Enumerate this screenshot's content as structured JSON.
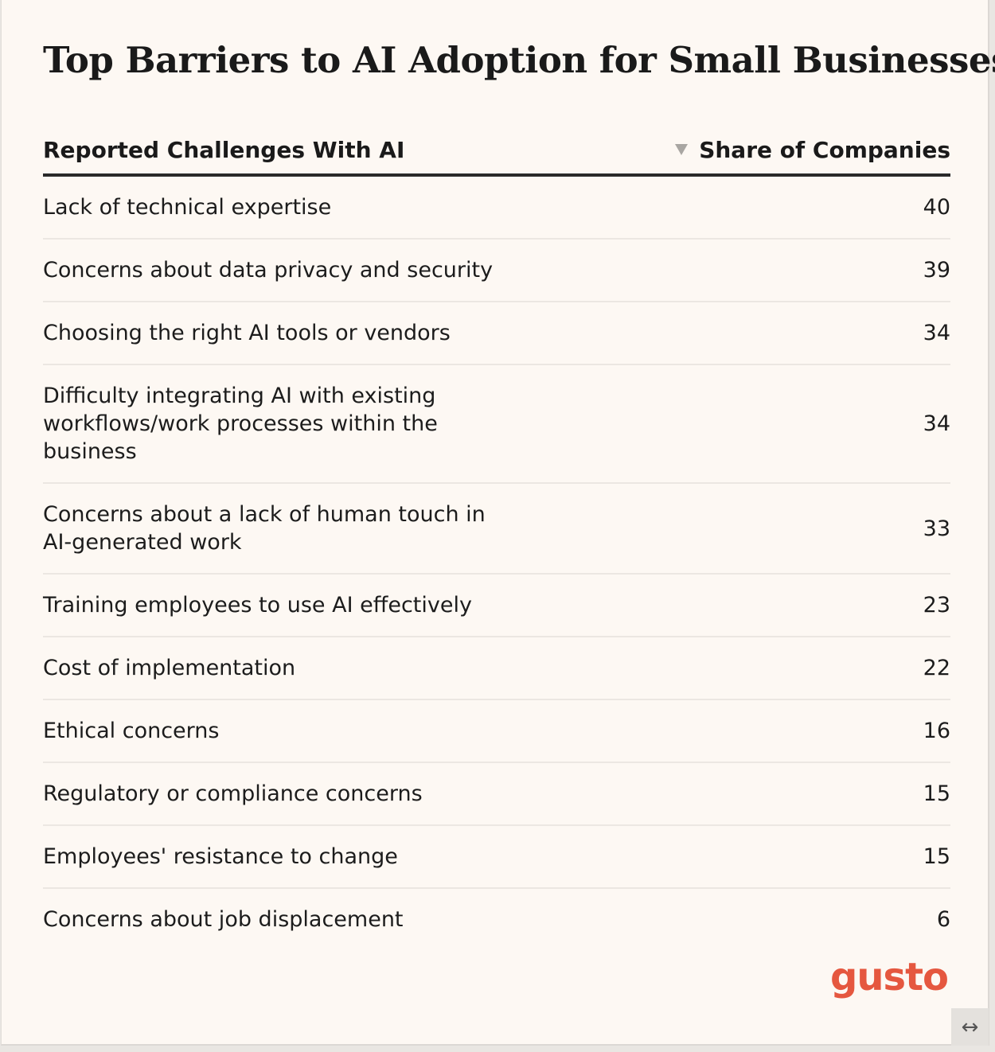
{
  "colors": {
    "background": "#fdf8f3",
    "text": "#1a1a1a",
    "rule": "#2a2a2a",
    "brand": "#e5573f"
  },
  "brand": {
    "logo_text": "gusto"
  },
  "chart_data": {
    "type": "table",
    "title": "Top Barriers to AI Adoption for Small Businesses",
    "columns": [
      "Reported Challenges With AI",
      "Share of Companies"
    ],
    "sort": {
      "column": "Share of Companies",
      "direction": "descending"
    },
    "rows": [
      {
        "challenge": "Lack of technical expertise",
        "share": "40"
      },
      {
        "challenge": "Concerns about data privacy and security",
        "share": "39"
      },
      {
        "challenge": "Choosing the right AI tools or vendors",
        "share": "34"
      },
      {
        "challenge": "Difficulty integrating AI with existing workflows/work processes within the business",
        "share": "34"
      },
      {
        "challenge": "Concerns about a lack of human touch in AI-generated work",
        "share": "33"
      },
      {
        "challenge": "Training employees to use AI effectively",
        "share": "23"
      },
      {
        "challenge": "Cost of implementation",
        "share": "22"
      },
      {
        "challenge": "Ethical concerns",
        "share": "16"
      },
      {
        "challenge": "Regulatory or compliance concerns",
        "share": "15"
      },
      {
        "challenge": "Employees' resistance to change",
        "share": "15"
      },
      {
        "challenge": "Concerns about job displacement",
        "share": "6"
      }
    ]
  }
}
